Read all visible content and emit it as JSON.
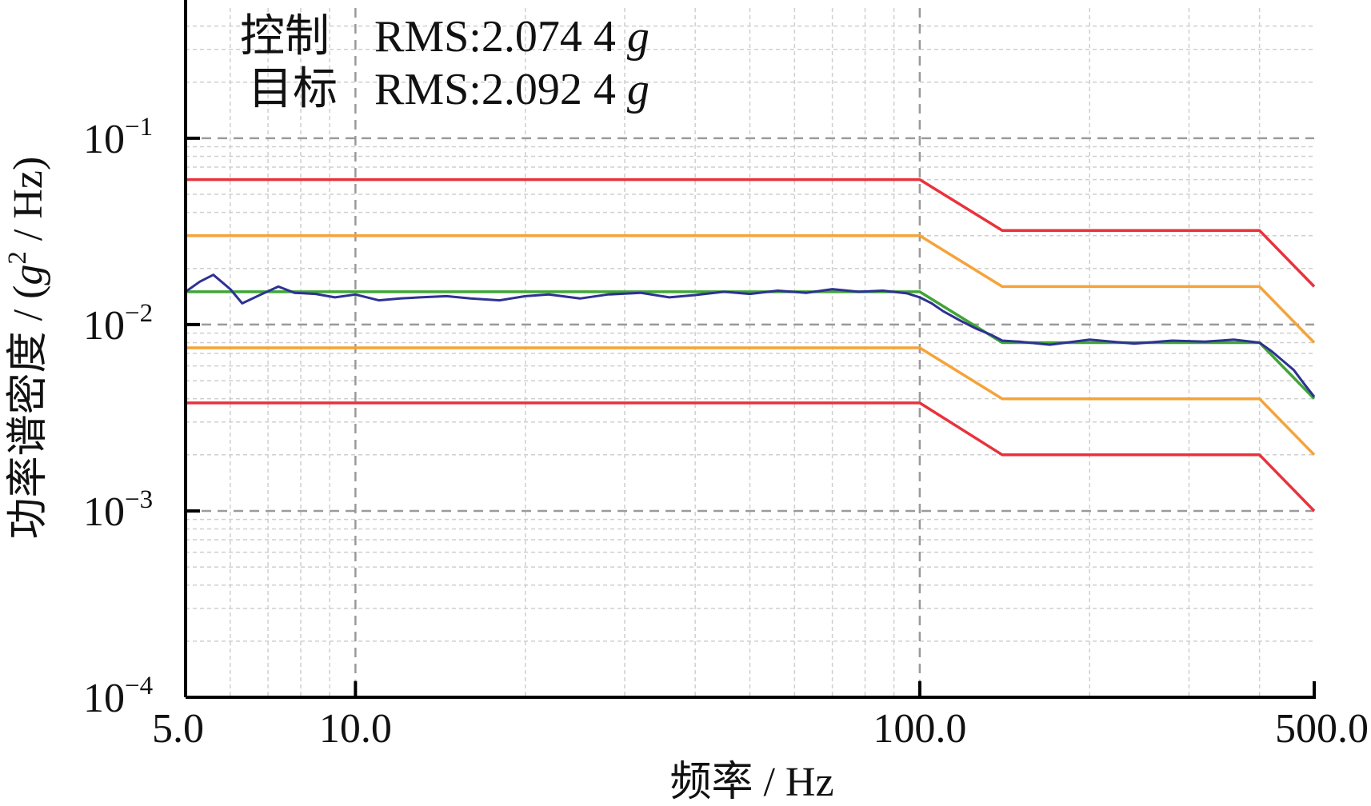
{
  "chart_data": {
    "type": "line",
    "xscale": "log",
    "yscale": "log",
    "xlim": [
      5,
      500
    ],
    "ylim": [
      0.0001,
      0.5
    ],
    "xticks": [
      {
        "value": 5,
        "label": "5.0"
      },
      {
        "value": 10,
        "label": "10.0"
      },
      {
        "value": 100,
        "label": "100.0"
      },
      {
        "value": 500,
        "label": "500.0"
      }
    ],
    "yticks": [
      {
        "value": 0.1,
        "base": "10",
        "exp": "−1"
      },
      {
        "value": 0.01,
        "base": "10",
        "exp": "−2"
      },
      {
        "value": 0.001,
        "base": "10",
        "exp": "−3"
      },
      {
        "value": 0.0001,
        "base": "10",
        "exp": "−4"
      }
    ],
    "xlabel": "频率 / Hz",
    "ylabel": {
      "prefix": "功率谱密度 / (",
      "var": "g",
      "sup": "2",
      "suffix": " / Hz)"
    },
    "grid": true,
    "annotations": [
      {
        "label": "控制",
        "text": "RMS:2.074 4 ",
        "unit": "g"
      },
      {
        "label": "目标",
        "text": "RMS:2.092 4 ",
        "unit": "g"
      }
    ],
    "series": [
      {
        "role": "upper-abort",
        "color": "#e8323c",
        "x": [
          5,
          100,
          140,
          400,
          500
        ],
        "y": [
          0.06,
          0.06,
          0.032,
          0.032,
          0.016
        ]
      },
      {
        "role": "upper-alarm",
        "color": "#f5a33a",
        "x": [
          5,
          100,
          140,
          400,
          500
        ],
        "y": [
          0.03,
          0.03,
          0.016,
          0.016,
          0.008
        ]
      },
      {
        "role": "reference",
        "color": "#3fa535",
        "x": [
          5,
          100,
          140,
          400,
          500
        ],
        "y": [
          0.015,
          0.015,
          0.008,
          0.008,
          0.004
        ]
      },
      {
        "role": "lower-alarm",
        "color": "#f5a33a",
        "x": [
          5,
          100,
          140,
          400,
          500
        ],
        "y": [
          0.0075,
          0.0075,
          0.004,
          0.004,
          0.002
        ]
      },
      {
        "role": "lower-abort",
        "color": "#e8323c",
        "x": [
          5,
          100,
          140,
          400,
          500
        ],
        "y": [
          0.0038,
          0.0038,
          0.002,
          0.002,
          0.001
        ]
      },
      {
        "role": "control",
        "color": "#2e3192",
        "x": [
          5,
          5.3,
          5.6,
          6.0,
          6.3,
          6.8,
          7.3,
          7.8,
          8.5,
          9.2,
          10,
          11,
          12,
          13,
          14.5,
          16,
          18,
          20,
          22,
          25,
          28,
          32,
          36,
          40,
          45,
          50,
          56,
          63,
          70,
          78,
          86,
          95,
          100,
          105,
          110,
          118,
          126,
          134,
          140,
          150,
          170,
          200,
          240,
          280,
          320,
          360,
          400,
          420,
          440,
          460,
          480,
          500
        ],
        "y": [
          0.015,
          0.017,
          0.0185,
          0.0155,
          0.013,
          0.0145,
          0.016,
          0.0148,
          0.0146,
          0.014,
          0.0145,
          0.0135,
          0.0138,
          0.014,
          0.0142,
          0.0138,
          0.0135,
          0.0142,
          0.0145,
          0.0138,
          0.0145,
          0.0148,
          0.014,
          0.0144,
          0.015,
          0.0146,
          0.0152,
          0.0148,
          0.0155,
          0.015,
          0.0152,
          0.0147,
          0.014,
          0.013,
          0.0118,
          0.0105,
          0.0095,
          0.0088,
          0.0082,
          0.0081,
          0.0078,
          0.0083,
          0.0079,
          0.0082,
          0.0081,
          0.0083,
          0.008,
          0.0072,
          0.0064,
          0.0057,
          0.0048,
          0.0041
        ]
      }
    ]
  }
}
